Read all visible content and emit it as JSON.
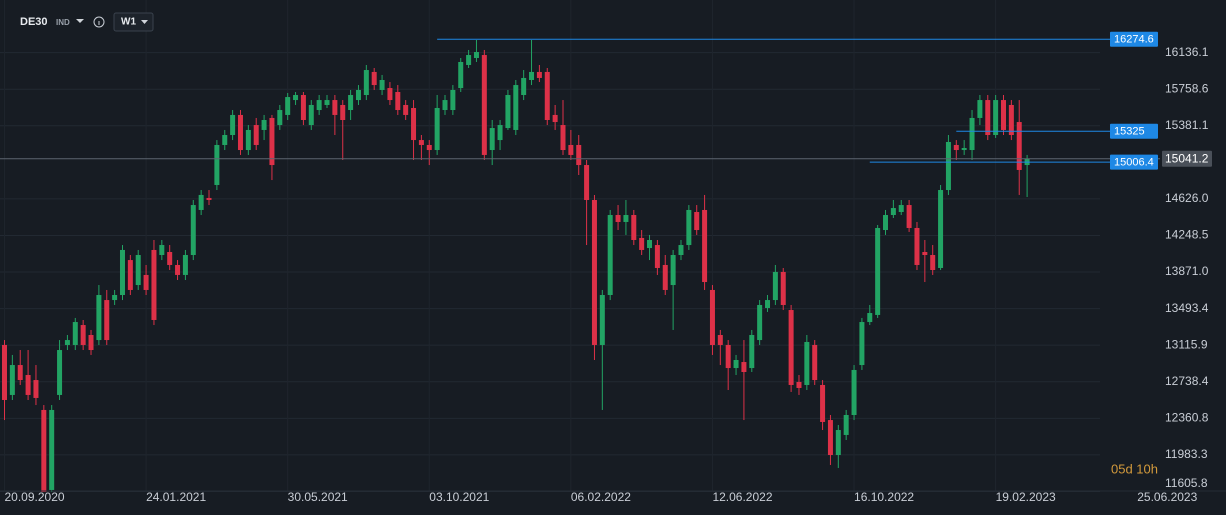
{
  "toolbar": {
    "symbol": "DE30",
    "market": "IND",
    "timeframe": "W1"
  },
  "chart_data": {
    "type": "candlestick",
    "x": [
      "20.09.2020",
      "27.09.2020",
      "04.10.2020",
      "11.10.2020",
      "18.10.2020",
      "25.10.2020",
      "01.11.2020",
      "08.11.2020",
      "15.11.2020",
      "22.11.2020",
      "29.11.2020",
      "06.12.2020",
      "13.12.2020",
      "20.12.2020",
      "27.12.2020",
      "03.01.2021",
      "10.01.2021",
      "17.01.2021",
      "24.01.2021",
      "31.01.2021",
      "07.02.2021",
      "14.02.2021",
      "21.02.2021",
      "28.02.2021",
      "07.03.2021",
      "14.03.2021",
      "21.03.2021",
      "28.03.2021",
      "04.04.2021",
      "11.04.2021",
      "18.04.2021",
      "25.04.2021",
      "02.05.2021",
      "09.05.2021",
      "16.05.2021",
      "23.05.2021",
      "30.05.2021",
      "06.06.2021",
      "13.06.2021",
      "20.06.2021",
      "27.06.2021",
      "04.07.2021",
      "11.07.2021",
      "18.07.2021",
      "25.07.2021",
      "01.08.2021",
      "08.08.2021",
      "15.08.2021",
      "22.08.2021",
      "29.08.2021",
      "05.09.2021",
      "12.09.2021",
      "19.09.2021",
      "26.09.2021",
      "03.10.2021",
      "10.10.2021",
      "17.10.2021",
      "24.10.2021",
      "31.10.2021",
      "07.11.2021",
      "14.11.2021",
      "21.11.2021",
      "28.11.2021",
      "05.12.2021",
      "12.12.2021",
      "19.12.2021",
      "26.12.2021",
      "02.01.2022",
      "09.01.2022",
      "16.01.2022",
      "23.01.2022",
      "30.01.2022",
      "06.02.2022",
      "13.02.2022",
      "20.02.2022",
      "27.02.2022",
      "06.03.2022",
      "13.03.2022",
      "20.03.2022",
      "27.03.2022",
      "03.04.2022",
      "10.04.2022",
      "17.04.2022",
      "24.04.2022",
      "01.05.2022",
      "08.05.2022",
      "15.05.2022",
      "22.05.2022",
      "29.05.2022",
      "05.06.2022",
      "12.06.2022",
      "19.06.2022",
      "26.06.2022",
      "03.07.2022",
      "10.07.2022",
      "17.07.2022",
      "24.07.2022",
      "31.07.2022",
      "07.08.2022",
      "14.08.2022",
      "21.08.2022",
      "28.08.2022",
      "04.09.2022",
      "11.09.2022",
      "18.09.2022",
      "25.09.2022",
      "02.10.2022",
      "09.10.2022",
      "16.10.2022",
      "23.10.2022",
      "30.10.2022",
      "06.11.2022",
      "13.11.2022",
      "20.11.2022",
      "27.11.2022",
      "04.12.2022",
      "11.12.2022",
      "18.12.2022",
      "25.12.2022",
      "01.01.2023",
      "08.01.2023",
      "15.01.2023",
      "22.01.2023",
      "29.01.2023",
      "05.02.2023",
      "12.02.2023",
      "19.02.2023",
      "26.02.2023",
      "05.03.2023",
      "12.03.2023",
      "19.03.2023"
    ],
    "open": [
      13118,
      12602,
      12911,
      12808,
      12756,
      12447,
      11621,
      12602,
      13118,
      13118,
      13324,
      13221,
      13169,
      13582,
      13582,
      13634,
      13995,
      13737,
      13841,
      14099,
      14047,
      14078,
      13944,
      13841,
      14047,
      14512,
      14636,
      14770,
      15183,
      15286,
      15493,
      15131,
      15389,
      15338,
      15462,
      15389,
      15493,
      15647,
      15699,
      15389,
      15544,
      15596,
      15647,
      15596,
      15544,
      15647,
      15699,
      15937,
      15751,
      15771,
      15730,
      15596,
      15565,
      15234,
      15183,
      15131,
      15544,
      15544,
      15771,
      16009,
      16081,
      16112,
      15131,
      15234,
      15358,
      15338,
      15699,
      15854,
      15937,
      15937,
      15493,
      15389,
      15183,
      15183,
      14976,
      14615,
      13118,
      13634,
      14460,
      14388,
      14460,
      14223,
      14119,
      14150,
      13944,
      13737,
      14047,
      14150,
      14491,
      14512,
      13686,
      13221,
      13118,
      12880,
      12942,
      12880,
      13169,
      13500,
      13582,
      13872,
      13479,
      12736,
      12705,
      13118,
      12705,
      12343,
      11982,
      12189,
      12395,
      12911,
      13355,
      13428,
      14305,
      14460,
      14491,
      14563,
      14326,
      14078,
      14047,
      13913,
      14718,
      15183,
      15131,
      15131,
      15462,
      15647,
      15286,
      15647,
      15596,
      15420,
      14976
    ],
    "high": [
      13169,
      13015,
      13066,
      13066,
      12911,
      12498,
      12498,
      13169,
      13221,
      13397,
      13376,
      13273,
      13737,
      13686,
      13686,
      14150,
      14047,
      14099,
      13944,
      14202,
      14202,
      14150,
      13995,
      14099,
      14615,
      14718,
      14718,
      15234,
      15338,
      15544,
      15544,
      15389,
      15462,
      15493,
      15493,
      15596,
      15720,
      15730,
      15730,
      15647,
      15699,
      15699,
      15699,
      15647,
      15751,
      15802,
      16009,
      15978,
      15906,
      15833,
      15802,
      15647,
      15647,
      15286,
      15234,
      15699,
      15699,
      15802,
      16081,
      16164,
      16267,
      16164,
      15441,
      15441,
      15751,
      15854,
      15957,
      16267,
      16009,
      15978,
      15596,
      15647,
      15338,
      15286,
      15028,
      14667,
      13686,
      14512,
      14563,
      14615,
      14512,
      14305,
      14254,
      14202,
      14047,
      14099,
      14202,
      14563,
      14563,
      14667,
      13737,
      13273,
      13169,
      13015,
      13169,
      13273,
      13582,
      13634,
      13944,
      13913,
      13531,
      12808,
      13221,
      13169,
      12756,
      12395,
      12292,
      12447,
      12911,
      13397,
      13531,
      14357,
      14512,
      14615,
      14615,
      14615,
      14388,
      14202,
      14150,
      14770,
      15286,
      15234,
      15234,
      15544,
      15699,
      15699,
      15699,
      15699,
      15647,
      15647,
      15080
    ],
    "low": [
      12343,
      12550,
      12705,
      12550,
      12498,
      11517,
      11569,
      12550,
      13066,
      13066,
      13066,
      13015,
      13118,
      13118,
      13531,
      13582,
      13634,
      13686,
      13634,
      13324,
      13995,
      13892,
      13789,
      13789,
      13995,
      14460,
      14563,
      14718,
      15131,
      15234,
      15080,
      15080,
      15131,
      15234,
      14821,
      15338,
      15441,
      15596,
      15389,
      15338,
      15493,
      15565,
      15286,
      15028,
      15441,
      15596,
      15647,
      15751,
      15699,
      15596,
      15493,
      15441,
      15028,
      15028,
      14976,
      15080,
      15493,
      15493,
      15730,
      15978,
      16040,
      15028,
      14976,
      15131,
      15338,
      15286,
      15647,
      15802,
      15833,
      15389,
      15338,
      15080,
      15028,
      14873,
      14150,
      12963,
      12447,
      13582,
      14305,
      14254,
      14150,
      14047,
      13995,
      13841,
      13634,
      13273,
      13995,
      14099,
      14254,
      13686,
      13015,
      12911,
      12653,
      12808,
      12343,
      12839,
      13118,
      13459,
      13531,
      13479,
      12633,
      12602,
      12653,
      12705,
      12240,
      11879,
      11848,
      12137,
      12343,
      12860,
      13324,
      13397,
      14254,
      14429,
      14460,
      14285,
      13892,
      13768,
      13841,
      13892,
      14667,
      15028,
      15080,
      15028,
      15389,
      15234,
      15255,
      15286,
      15234,
      14667,
      14646
    ],
    "close": [
      12550,
      12911,
      12756,
      12602,
      12571,
      11569,
      12447,
      13066,
      13169,
      13355,
      13118,
      13066,
      13634,
      13169,
      13634,
      14099,
      13686,
      14047,
      13686,
      13376,
      14150,
      13944,
      13841,
      14047,
      14563,
      14667,
      14615,
      15183,
      15286,
      15493,
      15131,
      15338,
      15183,
      15441,
      14976,
      15544,
      15678,
      15699,
      15441,
      15596,
      15647,
      15647,
      15493,
      15441,
      15699,
      15751,
      15957,
      15802,
      15854,
      15647,
      15544,
      15493,
      15234,
      15183,
      15131,
      15565,
      15647,
      15751,
      16040,
      16112,
      16143,
      15080,
      15358,
      15389,
      15699,
      15802,
      15875,
      15937,
      15875,
      15441,
      15420,
      15131,
      15080,
      14976,
      14615,
      13118,
      13634,
      14460,
      14388,
      14460,
      14202,
      14099,
      14202,
      13913,
      13686,
      14047,
      14150,
      14512,
      14305,
      13768,
      13118,
      13118,
      12880,
      12963,
      12839,
      13221,
      13531,
      13582,
      13872,
      13531,
      12705,
      12674,
      13149,
      12756,
      12323,
      11982,
      12240,
      12395,
      12860,
      13355,
      13448,
      14326,
      14460,
      14532,
      14563,
      14326,
      13944,
      14047,
      13892,
      14718,
      15214,
      15131,
      15152,
      15462,
      15647,
      15286,
      15647,
      15338,
      15286,
      14925,
      15041.2
    ],
    "up_color": "#22a464",
    "down_color": "#dd3148",
    "xlim": [
      "16.09.2020",
      "12.09.2023"
    ],
    "xticks": [
      "20.09.2020",
      "24.01.2021",
      "30.05.2021",
      "03.10.2021",
      "06.02.2022",
      "12.06.2022",
      "16.10.2022",
      "19.02.2023",
      "25.06.2023"
    ],
    "ylim": [
      11600,
      16680
    ],
    "yticks": [
      16136.1,
      15758.6,
      15381.1,
      {
        "value": 14626,
        "label": "14626.0"
      },
      14248.5,
      {
        "value": 13871,
        "label": "13871.0"
      },
      13493.4,
      13115.9,
      12738.4,
      12360.8,
      11983.3,
      11605.8
    ],
    "grid": true,
    "levels": [
      {
        "value": 16274.6,
        "from": "10.10.2021"
      },
      {
        "value": 15325.0,
        "from": "15.01.2023"
      },
      {
        "value": 15006.4,
        "from": "30.10.2022"
      }
    ],
    "level_color": "#1e88e5",
    "countdown": "05d 10h"
  }
}
